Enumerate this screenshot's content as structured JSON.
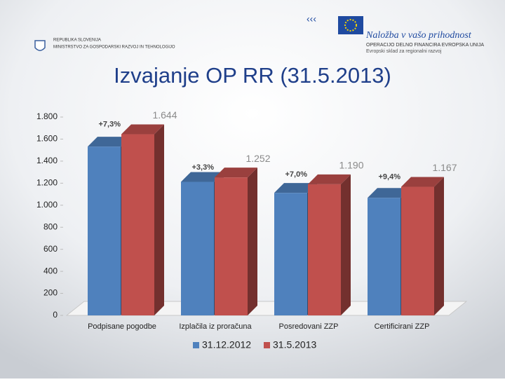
{
  "header": {
    "country": "REPUBLIKA SLOVENIJA",
    "ministry": "MINISTRSTVO ZA GOSPODARSKI RAZVOJ IN TEHNOLOGIJO",
    "slogan": "Naložba v vašo prihodnost",
    "eu_line1": "OPERACIJO DELNO FINANCIRA EVROPSKA UNIJA",
    "eu_line2": "Evropski sklad za regionalni razvoj"
  },
  "chart_data": {
    "type": "bar3d",
    "title": "Izvajanje OP RR (31.5.2013)",
    "categories": [
      "Podpisane pogodbe",
      "Izplačila iz proračuna",
      "Posredovani ZZP",
      "Certificirani ZZP"
    ],
    "series": [
      {
        "name": "31.12.2012",
        "color": "#4f81bd",
        "values": [
          1532,
          1212,
          1112,
          1067
        ]
      },
      {
        "name": "31.5.2013",
        "color": "#c0504d",
        "values": [
          1644,
          1252,
          1190,
          1167
        ],
        "value_labels": [
          "1.644",
          "1.252",
          "1.190",
          "1.167"
        ]
      }
    ],
    "annotations": [
      "+7,3%",
      "+3,3%",
      "+7,0%",
      "+9,4%"
    ],
    "ylim": [
      0,
      1800
    ],
    "yticks": [
      0,
      200,
      400,
      600,
      800,
      {
        "value": 1000,
        "label": "1.000"
      },
      {
        "value": 1200,
        "label": "1.200"
      },
      {
        "value": 1400,
        "label": "1.400"
      },
      {
        "value": 1600,
        "label": "1.600"
      },
      {
        "value": 1800,
        "label": "1.800"
      }
    ],
    "legend": "bottom"
  }
}
